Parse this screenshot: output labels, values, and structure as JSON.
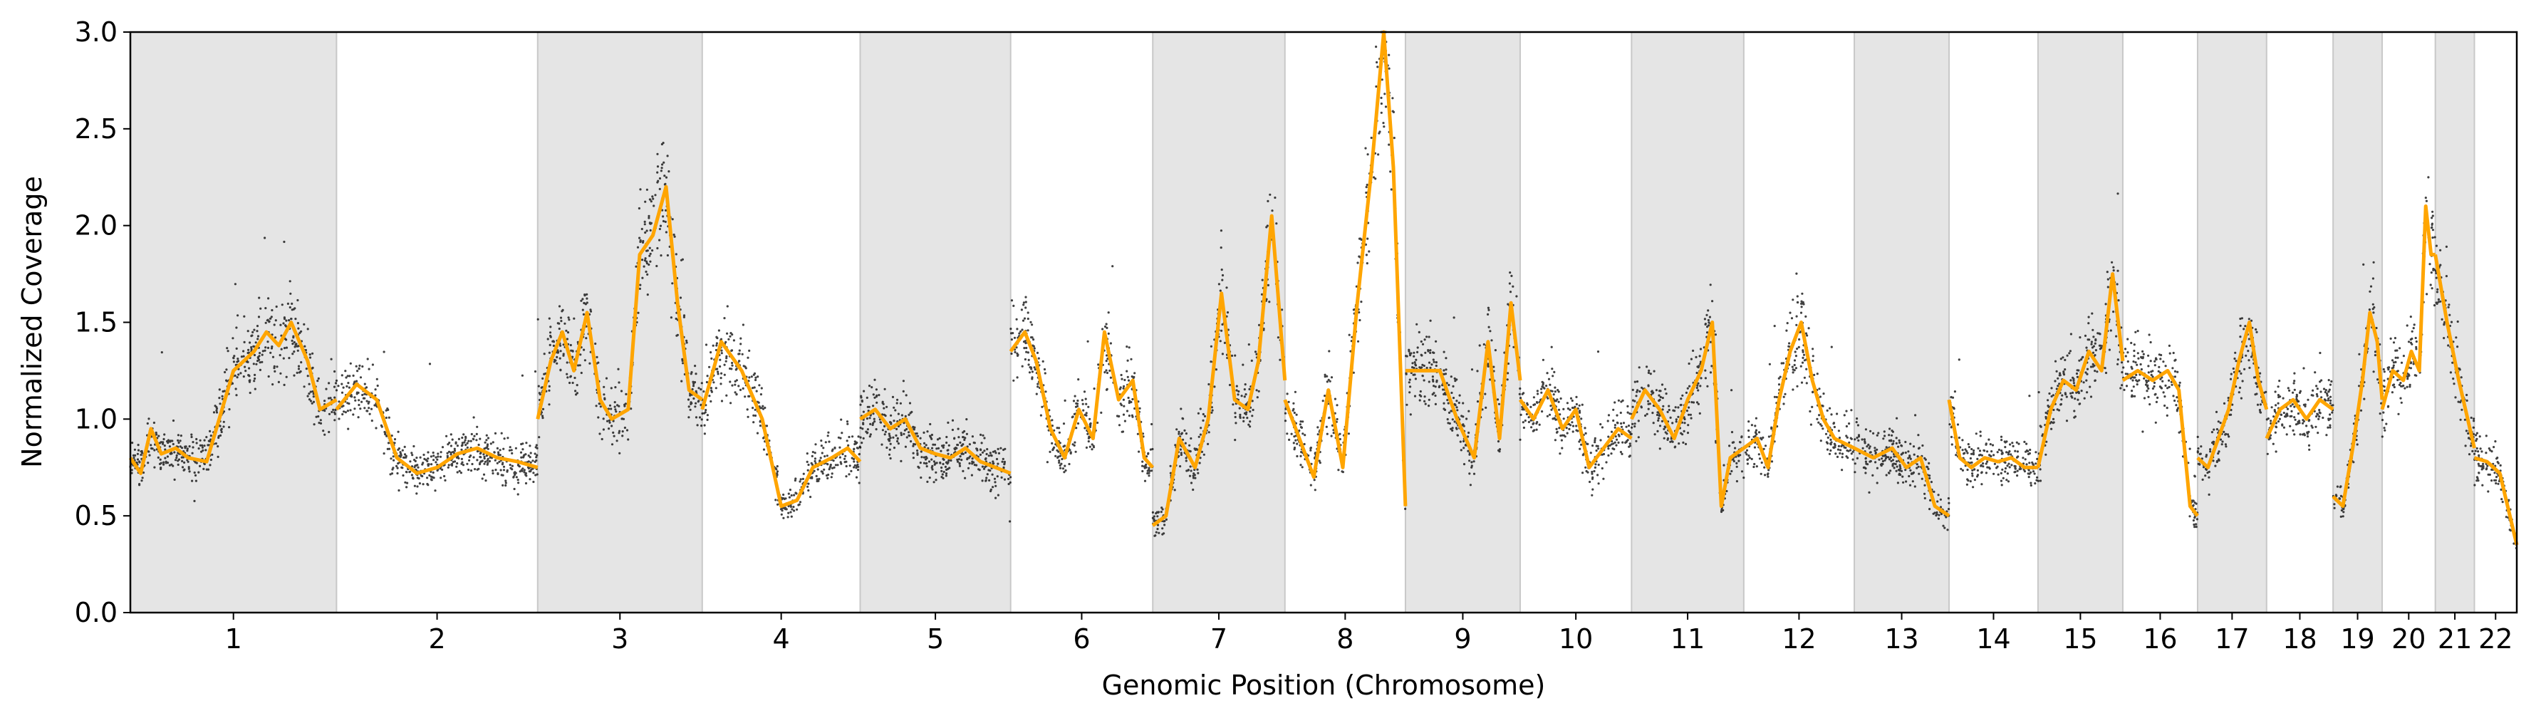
{
  "chart_data": {
    "type": "scatter",
    "xlabel": "Genomic Position (Chromosome)",
    "ylabel": "Normalized Coverage",
    "ylim": [
      0.0,
      3.0
    ],
    "yticks": [
      "0.0",
      "0.5",
      "1.0",
      "1.5",
      "2.0",
      "2.5",
      "3.0"
    ],
    "grid": false,
    "legend": "none",
    "colors": {
      "points": "#000000",
      "segments": "#ffa500",
      "shade": "#e5e5e5",
      "shade_edge": "#c8c8c8"
    },
    "chromosomes": [
      {
        "label": "1",
        "size": 248,
        "shaded": true,
        "segments": [
          [
            0,
            0.8
          ],
          [
            0.05,
            0.72
          ],
          [
            0.1,
            0.95
          ],
          [
            0.15,
            0.82
          ],
          [
            0.22,
            0.85
          ],
          [
            0.28,
            0.8
          ],
          [
            0.37,
            0.78
          ],
          [
            0.5,
            1.25
          ],
          [
            0.6,
            1.35
          ],
          [
            0.66,
            1.45
          ],
          [
            0.72,
            1.38
          ],
          [
            0.78,
            1.5
          ],
          [
            0.86,
            1.3
          ],
          [
            0.92,
            1.05
          ],
          [
            1,
            1.1
          ]
        ]
      },
      {
        "label": "2",
        "size": 242,
        "shaded": false,
        "segments": [
          [
            0,
            1.05
          ],
          [
            0.1,
            1.18
          ],
          [
            0.2,
            1.1
          ],
          [
            0.3,
            0.8
          ],
          [
            0.4,
            0.72
          ],
          [
            0.5,
            0.75
          ],
          [
            0.6,
            0.82
          ],
          [
            0.7,
            0.85
          ],
          [
            0.8,
            0.8
          ],
          [
            0.9,
            0.78
          ],
          [
            1,
            0.75
          ]
        ]
      },
      {
        "label": "3",
        "size": 198,
        "shaded": true,
        "segments": [
          [
            0,
            1.0
          ],
          [
            0.08,
            1.3
          ],
          [
            0.15,
            1.45
          ],
          [
            0.22,
            1.25
          ],
          [
            0.3,
            1.55
          ],
          [
            0.38,
            1.1
          ],
          [
            0.45,
            1.0
          ],
          [
            0.55,
            1.05
          ],
          [
            0.62,
            1.85
          ],
          [
            0.7,
            1.95
          ],
          [
            0.78,
            2.2
          ],
          [
            0.85,
            1.6
          ],
          [
            0.92,
            1.15
          ],
          [
            1,
            1.1
          ]
        ]
      },
      {
        "label": "4",
        "size": 190,
        "shaded": false,
        "segments": [
          [
            0,
            1.05
          ],
          [
            0.12,
            1.4
          ],
          [
            0.25,
            1.25
          ],
          [
            0.38,
            1.0
          ],
          [
            0.5,
            0.55
          ],
          [
            0.6,
            0.58
          ],
          [
            0.7,
            0.75
          ],
          [
            0.82,
            0.8
          ],
          [
            0.92,
            0.85
          ],
          [
            1,
            0.78
          ]
        ]
      },
      {
        "label": "5",
        "size": 181,
        "shaded": true,
        "segments": [
          [
            0,
            1.0
          ],
          [
            0.1,
            1.05
          ],
          [
            0.2,
            0.95
          ],
          [
            0.3,
            1.0
          ],
          [
            0.4,
            0.85
          ],
          [
            0.5,
            0.82
          ],
          [
            0.6,
            0.8
          ],
          [
            0.7,
            0.85
          ],
          [
            0.8,
            0.78
          ],
          [
            0.9,
            0.75
          ],
          [
            1,
            0.72
          ]
        ]
      },
      {
        "label": "6",
        "size": 171,
        "shaded": false,
        "segments": [
          [
            0,
            1.35
          ],
          [
            0.1,
            1.45
          ],
          [
            0.18,
            1.3
          ],
          [
            0.28,
            0.95
          ],
          [
            0.38,
            0.8
          ],
          [
            0.48,
            1.05
          ],
          [
            0.58,
            0.9
          ],
          [
            0.66,
            1.45
          ],
          [
            0.76,
            1.1
          ],
          [
            0.86,
            1.2
          ],
          [
            0.94,
            0.8
          ],
          [
            1,
            0.75
          ]
        ]
      },
      {
        "label": "7",
        "size": 159,
        "shaded": true,
        "segments": [
          [
            0,
            0.45
          ],
          [
            0.1,
            0.5
          ],
          [
            0.2,
            0.9
          ],
          [
            0.32,
            0.75
          ],
          [
            0.42,
            1.0
          ],
          [
            0.52,
            1.65
          ],
          [
            0.62,
            1.1
          ],
          [
            0.72,
            1.05
          ],
          [
            0.8,
            1.3
          ],
          [
            0.9,
            2.05
          ],
          [
            1,
            1.2
          ]
        ]
      },
      {
        "label": "8",
        "size": 145,
        "shaded": false,
        "segments": [
          [
            0,
            1.1
          ],
          [
            0.12,
            0.9
          ],
          [
            0.24,
            0.7
          ],
          [
            0.36,
            1.15
          ],
          [
            0.48,
            0.75
          ],
          [
            0.6,
            1.6
          ],
          [
            0.72,
            2.3
          ],
          [
            0.82,
            3.0
          ],
          [
            0.9,
            2.3
          ],
          [
            1,
            0.55
          ]
        ]
      },
      {
        "label": "9",
        "size": 138,
        "shaded": true,
        "segments": [
          [
            0,
            1.25
          ],
          [
            0.15,
            1.25
          ],
          [
            0.3,
            1.25
          ],
          [
            0.45,
            1.0
          ],
          [
            0.6,
            0.8
          ],
          [
            0.72,
            1.4
          ],
          [
            0.82,
            0.9
          ],
          [
            0.92,
            1.6
          ],
          [
            1,
            1.2
          ]
        ]
      },
      {
        "label": "10",
        "size": 134,
        "shaded": false,
        "segments": [
          [
            0,
            1.1
          ],
          [
            0.12,
            1.0
          ],
          [
            0.25,
            1.15
          ],
          [
            0.38,
            0.95
          ],
          [
            0.5,
            1.05
          ],
          [
            0.62,
            0.75
          ],
          [
            0.75,
            0.85
          ],
          [
            0.88,
            0.95
          ],
          [
            1,
            0.9
          ]
        ]
      },
      {
        "label": "11",
        "size": 135,
        "shaded": true,
        "segments": [
          [
            0,
            1.0
          ],
          [
            0.12,
            1.15
          ],
          [
            0.25,
            1.05
          ],
          [
            0.38,
            0.9
          ],
          [
            0.5,
            1.1
          ],
          [
            0.62,
            1.25
          ],
          [
            0.72,
            1.5
          ],
          [
            0.8,
            0.55
          ],
          [
            0.88,
            0.8
          ],
          [
            1,
            0.85
          ]
        ]
      },
      {
        "label": "12",
        "size": 133,
        "shaded": false,
        "segments": [
          [
            0,
            0.85
          ],
          [
            0.12,
            0.9
          ],
          [
            0.22,
            0.75
          ],
          [
            0.32,
            1.1
          ],
          [
            0.42,
            1.35
          ],
          [
            0.52,
            1.5
          ],
          [
            0.62,
            1.2
          ],
          [
            0.72,
            1.0
          ],
          [
            0.82,
            0.9
          ],
          [
            1,
            0.85
          ]
        ]
      },
      {
        "label": "13",
        "size": 114,
        "shaded": true,
        "segments": [
          [
            0,
            0.85
          ],
          [
            0.2,
            0.8
          ],
          [
            0.4,
            0.85
          ],
          [
            0.55,
            0.75
          ],
          [
            0.7,
            0.8
          ],
          [
            0.85,
            0.55
          ],
          [
            1,
            0.5
          ]
        ]
      },
      {
        "label": "14",
        "size": 107,
        "shaded": false,
        "segments": [
          [
            0,
            1.1
          ],
          [
            0.12,
            0.8
          ],
          [
            0.25,
            0.75
          ],
          [
            0.4,
            0.8
          ],
          [
            0.55,
            0.78
          ],
          [
            0.7,
            0.8
          ],
          [
            0.85,
            0.75
          ],
          [
            1,
            0.75
          ]
        ]
      },
      {
        "label": "15",
        "size": 102,
        "shaded": true,
        "segments": [
          [
            0,
            0.75
          ],
          [
            0.15,
            1.05
          ],
          [
            0.3,
            1.2
          ],
          [
            0.45,
            1.15
          ],
          [
            0.6,
            1.35
          ],
          [
            0.75,
            1.25
          ],
          [
            0.88,
            1.75
          ],
          [
            1,
            1.3
          ]
        ]
      },
      {
        "label": "16",
        "size": 90,
        "shaded": false,
        "segments": [
          [
            0,
            1.2
          ],
          [
            0.2,
            1.25
          ],
          [
            0.4,
            1.2
          ],
          [
            0.6,
            1.25
          ],
          [
            0.75,
            1.15
          ],
          [
            0.9,
            0.55
          ],
          [
            1,
            0.5
          ]
        ]
      },
      {
        "label": "17",
        "size": 83,
        "shaded": true,
        "segments": [
          [
            0,
            0.8
          ],
          [
            0.15,
            0.75
          ],
          [
            0.3,
            0.9
          ],
          [
            0.45,
            1.05
          ],
          [
            0.6,
            1.3
          ],
          [
            0.75,
            1.5
          ],
          [
            0.88,
            1.2
          ],
          [
            1,
            1.05
          ]
        ]
      },
      {
        "label": "18",
        "size": 80,
        "shaded": false,
        "segments": [
          [
            0,
            0.9
          ],
          [
            0.2,
            1.05
          ],
          [
            0.4,
            1.1
          ],
          [
            0.6,
            1.0
          ],
          [
            0.8,
            1.1
          ],
          [
            1,
            1.05
          ]
        ]
      },
      {
        "label": "19",
        "size": 59,
        "shaded": true,
        "segments": [
          [
            0,
            0.6
          ],
          [
            0.2,
            0.55
          ],
          [
            0.4,
            0.85
          ],
          [
            0.6,
            1.2
          ],
          [
            0.75,
            1.55
          ],
          [
            0.9,
            1.4
          ],
          [
            1,
            1.1
          ]
        ]
      },
      {
        "label": "20",
        "size": 64,
        "shaded": false,
        "segments": [
          [
            0,
            1.05
          ],
          [
            0.2,
            1.25
          ],
          [
            0.4,
            1.2
          ],
          [
            0.55,
            1.35
          ],
          [
            0.7,
            1.25
          ],
          [
            0.82,
            2.1
          ],
          [
            0.92,
            1.85
          ],
          [
            1,
            1.85
          ]
        ]
      },
      {
        "label": "21",
        "size": 47,
        "shaded": true,
        "segments": [
          [
            0,
            1.85
          ],
          [
            0.3,
            1.5
          ],
          [
            0.6,
            1.2
          ],
          [
            1,
            0.85
          ]
        ]
      },
      {
        "label": "22",
        "size": 51,
        "shaded": false,
        "segments": [
          [
            0,
            0.8
          ],
          [
            0.3,
            0.78
          ],
          [
            0.6,
            0.72
          ],
          [
            1,
            0.35
          ]
        ]
      }
    ]
  }
}
